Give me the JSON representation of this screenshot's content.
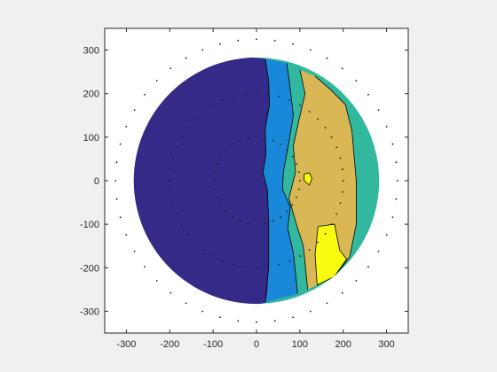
{
  "chart_data": {
    "type": "contour",
    "title": "",
    "xlabel": "",
    "ylabel": "",
    "xlim": [
      -350,
      350
    ],
    "ylim": [
      -350,
      350
    ],
    "x_ticks": [
      -300,
      -200,
      -100,
      0,
      100,
      200,
      300
    ],
    "y_ticks": [
      300,
      200,
      100,
      0,
      -100,
      -200,
      -300
    ],
    "x_tick_labels": [
      "-300",
      "-200",
      "-100",
      "0",
      "100",
      "200",
      "300"
    ],
    "y_tick_labels": [
      "300",
      "200",
      "100",
      "0",
      "-100",
      "-200",
      "-300"
    ],
    "grid": false,
    "legend": "none",
    "domain": {
      "shape": "disk",
      "center": [
        0,
        0
      ],
      "radius": 283
    },
    "level_colors": [
      "#352a87",
      "#1a88d8",
      "#33b8a0",
      "#d9b754",
      "#f9fb0e"
    ],
    "contour_regions": [
      {
        "level": 0,
        "color": "#352a87",
        "boundary": [
          [
            -10,
            283
          ],
          [
            20,
            280
          ],
          [
            28,
            230
          ],
          [
            30,
            175
          ],
          [
            20,
            118
          ],
          [
            22,
            60
          ],
          [
            15,
            20
          ],
          [
            25,
            -20
          ],
          [
            28,
            -90
          ],
          [
            28,
            -200
          ],
          [
            25,
            -260
          ],
          [
            20,
            -280
          ],
          [
            -10,
            283
          ]
        ]
      },
      {
        "level": 1,
        "color": "#1a88d8",
        "boundary": [
          [
            20,
            280
          ],
          [
            70,
            270
          ],
          [
            78,
            210
          ],
          [
            85,
            150
          ],
          [
            75,
            90
          ],
          [
            62,
            20
          ],
          [
            60,
            -20
          ],
          [
            78,
            -60
          ],
          [
            72,
            -110
          ],
          [
            85,
            -165
          ],
          [
            95,
            -260
          ],
          [
            20,
            -280
          ],
          [
            25,
            -260
          ],
          [
            28,
            -200
          ],
          [
            28,
            -90
          ],
          [
            25,
            -20
          ],
          [
            15,
            20
          ],
          [
            22,
            60
          ],
          [
            20,
            118
          ],
          [
            30,
            175
          ],
          [
            28,
            230
          ]
        ]
      },
      {
        "level": 2,
        "color": "#33b8a0",
        "boundary": [
          [
            70,
            270
          ],
          [
            100,
            255
          ],
          [
            105,
            230
          ],
          [
            112,
            200
          ],
          [
            98,
            140
          ],
          [
            85,
            80
          ],
          [
            90,
            20
          ],
          [
            75,
            -40
          ],
          [
            92,
            -100
          ],
          [
            108,
            -150
          ],
          [
            118,
            -250
          ],
          [
            95,
            -260
          ],
          [
            85,
            -165
          ],
          [
            72,
            -110
          ],
          [
            78,
            -60
          ],
          [
            60,
            -20
          ],
          [
            62,
            20
          ],
          [
            75,
            90
          ],
          [
            85,
            150
          ],
          [
            78,
            210
          ]
        ]
      },
      {
        "level": 3,
        "color": "#d9b754",
        "boundary": [
          [
            100,
            255
          ],
          [
            135,
            240
          ],
          [
            170,
            210
          ],
          [
            205,
            175
          ],
          [
            220,
            115
          ],
          [
            230,
            0
          ],
          [
            230,
            -100
          ],
          [
            215,
            -175
          ],
          [
            180,
            -220
          ],
          [
            118,
            -250
          ],
          [
            108,
            -150
          ],
          [
            92,
            -100
          ],
          [
            75,
            -40
          ],
          [
            90,
            20
          ],
          [
            85,
            80
          ],
          [
            98,
            140
          ],
          [
            112,
            200
          ],
          [
            105,
            230
          ]
        ]
      },
      {
        "level": 4,
        "color": "#f9fb0e",
        "boundary": [
          [
            110,
            0
          ],
          [
            122,
            -10
          ],
          [
            128,
            5
          ],
          [
            122,
            18
          ],
          [
            110,
            15
          ]
        ]
      },
      {
        "level": 4,
        "color": "#f9fb0e",
        "boundary": [
          [
            142,
            -105
          ],
          [
            180,
            -100
          ],
          [
            192,
            -160
          ],
          [
            208,
            -180
          ],
          [
            180,
            -220
          ],
          [
            140,
            -240
          ],
          [
            135,
            -170
          ]
        ]
      }
    ],
    "contour_lines": [
      [
        [
          20,
          280
        ],
        [
          28,
          230
        ],
        [
          30,
          175
        ],
        [
          20,
          118
        ],
        [
          22,
          60
        ],
        [
          15,
          20
        ],
        [
          25,
          -20
        ],
        [
          28,
          -90
        ],
        [
          28,
          -200
        ],
        [
          20,
          -280
        ]
      ],
      [
        [
          70,
          270
        ],
        [
          78,
          210
        ],
        [
          85,
          150
        ],
        [
          75,
          90
        ],
        [
          62,
          20
        ],
        [
          60,
          -20
        ],
        [
          78,
          -60
        ],
        [
          72,
          -110
        ],
        [
          85,
          -165
        ],
        [
          95,
          -260
        ]
      ],
      [
        [
          100,
          255
        ],
        [
          112,
          200
        ],
        [
          98,
          140
        ],
        [
          85,
          80
        ],
        [
          90,
          20
        ],
        [
          75,
          -40
        ],
        [
          92,
          -100
        ],
        [
          108,
          -150
        ],
        [
          118,
          -250
        ]
      ],
      [
        [
          135,
          240
        ],
        [
          170,
          210
        ],
        [
          205,
          175
        ],
        [
          220,
          115
        ],
        [
          230,
          0
        ],
        [
          230,
          -100
        ],
        [
          215,
          -175
        ],
        [
          180,
          -220
        ]
      ],
      [
        [
          110,
          0
        ],
        [
          122,
          -10
        ],
        [
          128,
          5
        ],
        [
          122,
          18
        ],
        [
          110,
          15
        ],
        [
          110,
          0
        ]
      ],
      [
        [
          142,
          -105
        ],
        [
          180,
          -100
        ],
        [
          192,
          -160
        ],
        [
          208,
          -180
        ],
        [
          180,
          -220
        ],
        [
          140,
          -240
        ],
        [
          135,
          -170
        ],
        [
          142,
          -105
        ]
      ]
    ],
    "sample_points": {
      "rings": [
        {
          "radius": 100,
          "count": 32
        },
        {
          "radius": 200,
          "count": 48
        },
        {
          "radius": 325,
          "count": 48
        }
      ]
    }
  }
}
